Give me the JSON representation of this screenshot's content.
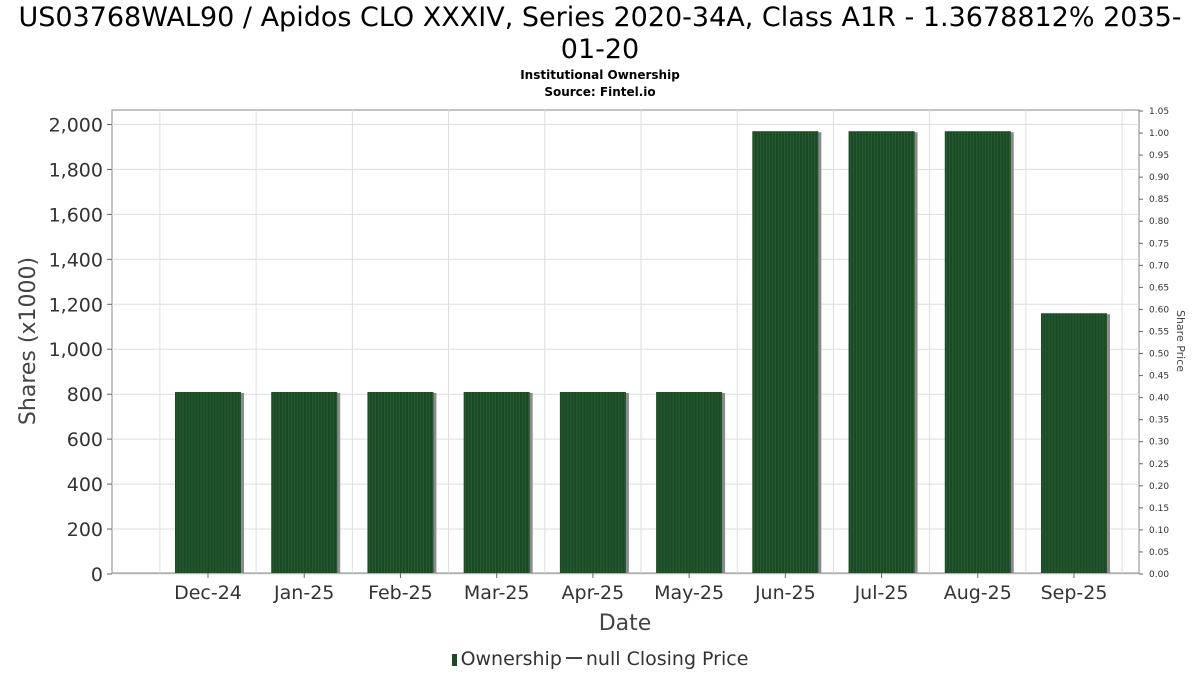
{
  "title": "US03768WAL90 / Apidos CLO XXXIV, Series 2020-34A, Class A1R - 1.3678812% 2035-01-20",
  "subtitle_line1": "Institutional Ownership",
  "subtitle_line2": "Source: Fintel.io",
  "legend": {
    "ownership": "Ownership",
    "price": "null Closing Price"
  },
  "colors": {
    "bar": "#1b4a26",
    "bar_shadow": "#8c8c8c",
    "grid": "#dddddd"
  },
  "chart_data": {
    "type": "bar",
    "categories": [
      "Dec-24",
      "Jan-25",
      "Feb-25",
      "Mar-25",
      "Apr-25",
      "May-25",
      "Jun-25",
      "Jul-25",
      "Aug-25",
      "Sep-25"
    ],
    "series": [
      {
        "name": "Ownership",
        "values": [
          810,
          810,
          810,
          810,
          810,
          810,
          1970,
          1970,
          1970,
          1160
        ]
      }
    ],
    "xlabel": "Date",
    "ylabel": "Shares (x1000)",
    "y2label": "Share Price",
    "ylim": [
      0,
      2060
    ],
    "y2lim": [
      0,
      1.05
    ],
    "yticks": [
      "0",
      "200",
      "400",
      "600",
      "800",
      "1,000",
      "1,200",
      "1,400",
      "1,600",
      "1,800",
      "2,000"
    ],
    "y2ticks": [
      "0.00",
      "0.05",
      "0.10",
      "0.15",
      "0.20",
      "0.25",
      "0.30",
      "0.35",
      "0.40",
      "0.45",
      "0.50",
      "0.55",
      "0.60",
      "0.65",
      "0.70",
      "0.75",
      "0.80",
      "0.85",
      "0.90",
      "0.95",
      "1.00",
      "1.05"
    ],
    "grid": true
  }
}
